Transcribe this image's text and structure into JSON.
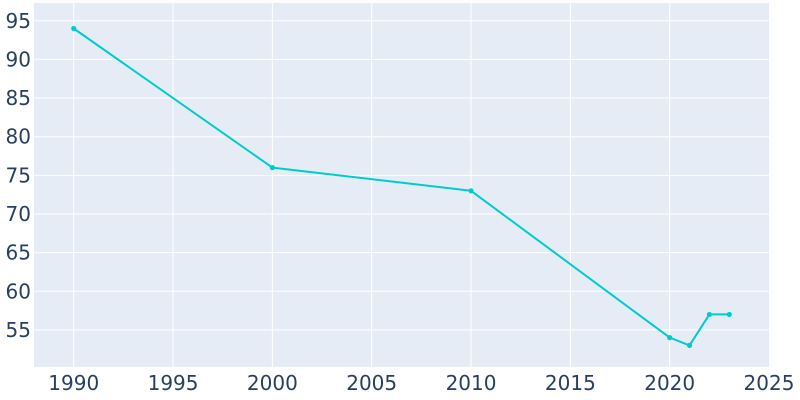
{
  "chart_data": {
    "type": "line",
    "title": "",
    "xlabel": "",
    "ylabel": "",
    "xlim": [
      1988,
      2025
    ],
    "ylim": [
      50.2,
      97.3
    ],
    "grid": true,
    "x_ticks": [
      1990,
      1995,
      2000,
      2005,
      2010,
      2015,
      2020,
      2025
    ],
    "y_ticks": [
      55,
      60,
      65,
      70,
      75,
      80,
      85,
      90,
      95
    ],
    "series": [
      {
        "x": [
          1990,
          2000,
          2010,
          2020,
          2021,
          2022,
          2023
        ],
        "y": [
          94,
          76,
          73,
          54,
          53,
          57,
          57
        ]
      }
    ],
    "colors": {
      "plot_background": "#e5ecf6",
      "grid": "#ffffff",
      "line": "#00cccc",
      "tick_text": "#2a3f5f"
    }
  }
}
